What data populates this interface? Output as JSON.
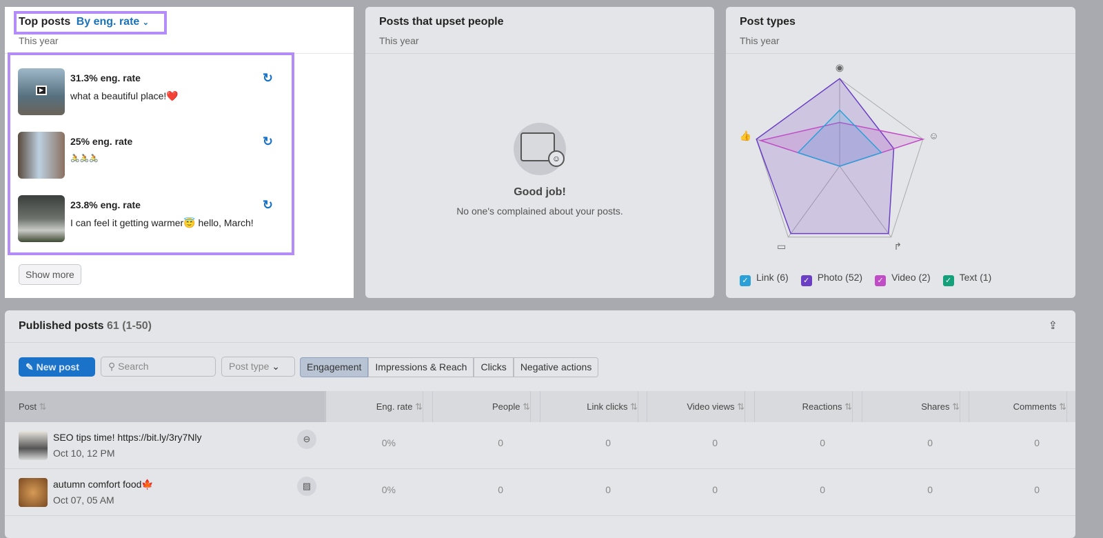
{
  "top_posts": {
    "title": "Top posts",
    "sort": "By eng. rate",
    "period": "This year",
    "show_more": "Show more",
    "posts": [
      {
        "rate": "31.3% eng. rate",
        "text": "what a beautiful place!❤️"
      },
      {
        "rate": "25% eng. rate",
        "text": "🚴🚴🚴"
      },
      {
        "rate": "23.8% eng. rate",
        "text": "I can feel it getting warmer😇 hello, March!"
      }
    ]
  },
  "upset": {
    "title": "Posts that upset people",
    "period": "This year",
    "empty_title": "Good job!",
    "empty_text": "No one's complained about your posts."
  },
  "post_types": {
    "title": "Post types",
    "period": "This year",
    "axes": [
      "views",
      "reactions-smile",
      "shares",
      "comments",
      "likes"
    ],
    "legend": [
      {
        "label": "Link (6)",
        "color": "#2a9fd8"
      },
      {
        "label": "Photo (52)",
        "color": "#6a3fc4"
      },
      {
        "label": "Video (2)",
        "color": "#c04cc6"
      },
      {
        "label": "Text (1)",
        "color": "#13a07a"
      }
    ],
    "series": [
      {
        "name": "Photo",
        "color": "#6a3fc4",
        "values": [
          1,
          0.65,
          0.95,
          0.95,
          1
        ]
      },
      {
        "name": "Video",
        "color": "#c04cc6",
        "values": [
          0.5,
          1,
          0,
          0,
          0.95
        ]
      },
      {
        "name": "Link",
        "color": "#2a9fd8",
        "values": [
          0.64,
          0.5,
          0,
          0,
          0.5
        ]
      }
    ]
  },
  "published": {
    "title": "Published posts",
    "count": "61 (1-50)",
    "new_post": "New post",
    "search_placeholder": "Search",
    "post_type": "Post type",
    "tabs": [
      "Engagement",
      "Impressions & Reach",
      "Clicks",
      "Negative actions"
    ],
    "columns": [
      "Post",
      "Eng. rate",
      "People",
      "Link clicks",
      "Video views",
      "Reactions",
      "Shares",
      "Comments"
    ],
    "rows": [
      {
        "text": "SEO tips time! https://bit.ly/3ry7Nly",
        "date": "Oct 10, 12 PM",
        "type": "link",
        "values": [
          "0%",
          "0",
          "0",
          "0",
          "0",
          "0",
          "0"
        ]
      },
      {
        "text": "autumn comfort food🍁",
        "date": "Oct 07, 05 AM",
        "type": "image",
        "values": [
          "0%",
          "0",
          "0",
          "0",
          "0",
          "0",
          "0"
        ]
      }
    ]
  }
}
